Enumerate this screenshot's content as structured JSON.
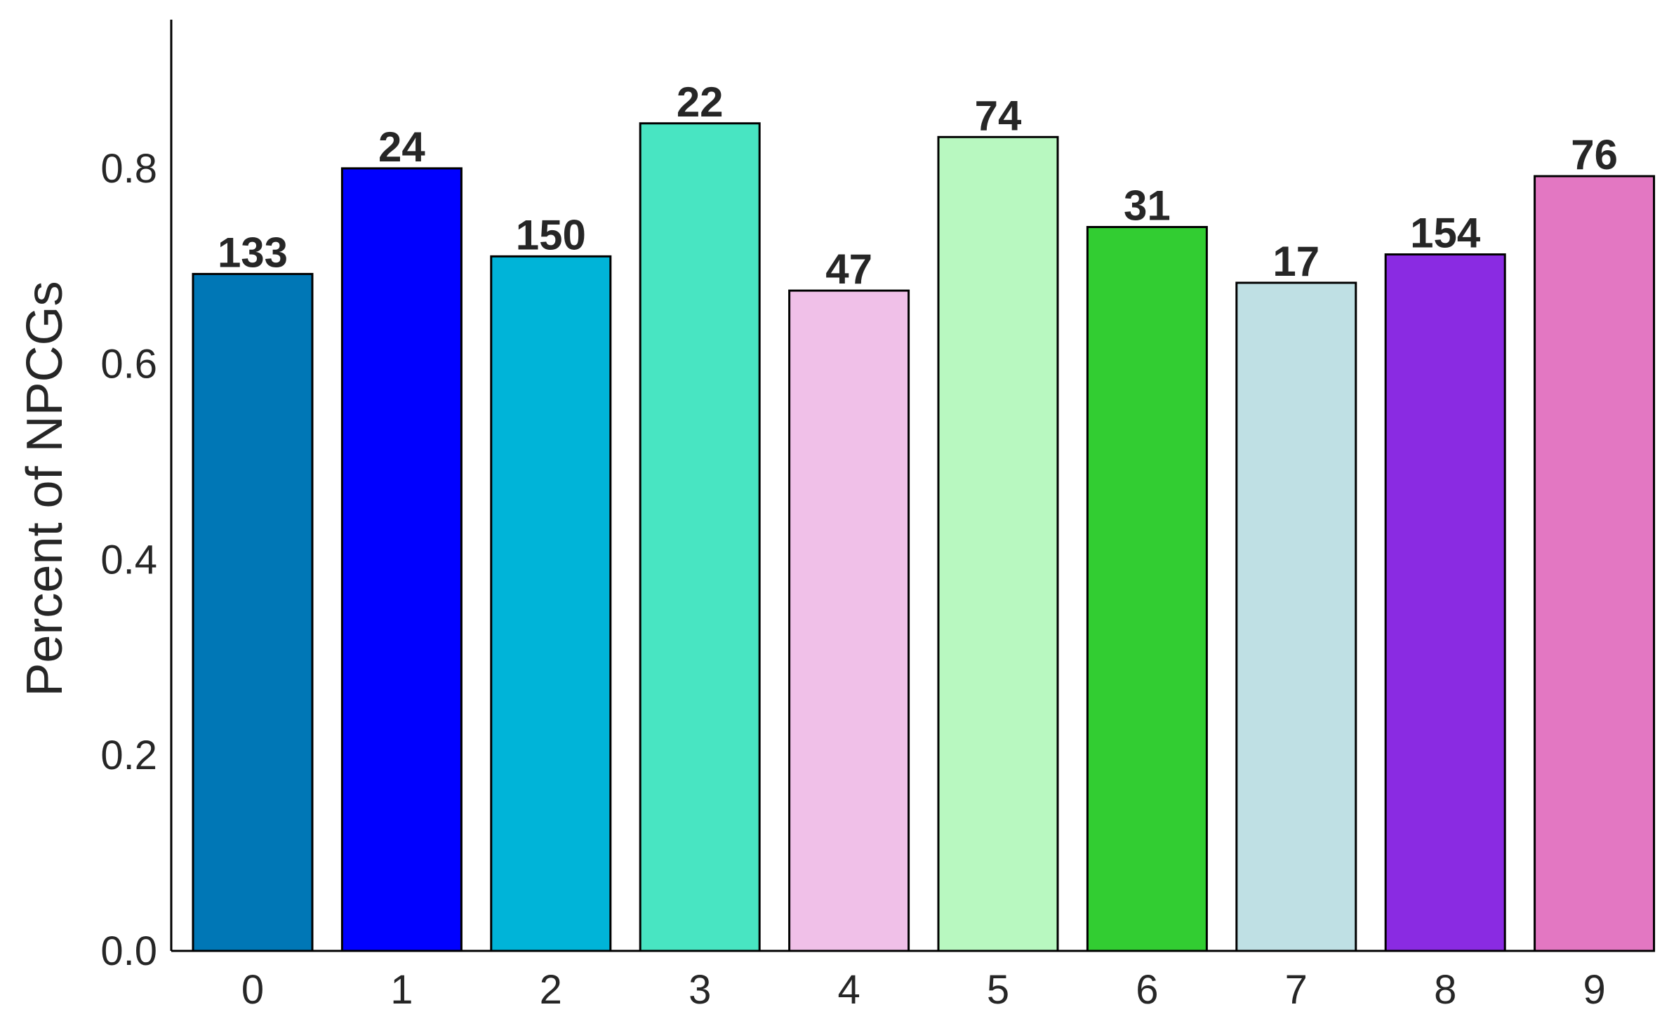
{
  "chart_data": {
    "type": "bar",
    "title": "",
    "xlabel": "",
    "ylabel": "Percent of NPCGs",
    "categories": [
      "0",
      "1",
      "2",
      "3",
      "4",
      "5",
      "6",
      "7",
      "8",
      "9"
    ],
    "values": [
      0.692,
      0.8,
      0.71,
      0.846,
      0.675,
      0.832,
      0.74,
      0.683,
      0.712,
      0.792
    ],
    "bar_labels": [
      "133",
      "24",
      "150",
      "22",
      "47",
      "74",
      "31",
      "17",
      "154",
      "76"
    ],
    "colors": [
      "#0077B6",
      "#0000FF",
      "#00B4D8",
      "#48E5C2",
      "#F0C0E8",
      "#B8F8C0",
      "#32CD32",
      "#BFE0E4",
      "#8A2BE2",
      "#E377C2"
    ],
    "yticks": [
      0.0,
      0.2,
      0.4,
      0.6,
      0.8
    ],
    "ytick_labels": [
      "0.0",
      "0.2",
      "0.4",
      "0.6",
      "0.8"
    ],
    "ylim": [
      0.0,
      0.952
    ],
    "grid": false,
    "legend": "none"
  }
}
